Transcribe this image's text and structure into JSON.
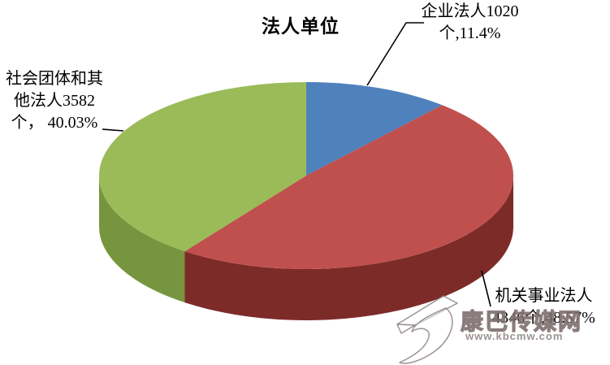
{
  "title": "法人单位",
  "chart_data": {
    "type": "pie",
    "style": "3d",
    "title": "法人单位",
    "rotation": "clockwise",
    "start_angle_deg": 0,
    "legend": "none",
    "slices": [
      {
        "key": "enterprise",
        "name": "企业法人",
        "count": 1020,
        "unit": "个",
        "percent": 11.4,
        "color": "#4f81bd",
        "side_color": "#365f91"
      },
      {
        "key": "government",
        "name": "机关事业法人",
        "count": 4346,
        "unit": "个",
        "percent": 48.57,
        "color": "#c0504d",
        "side_color": "#7d2b29"
      },
      {
        "key": "social",
        "name": "社会团体和其他法人",
        "count": 3582,
        "unit": "个",
        "percent": 40.03,
        "color": "#9bbb59",
        "side_color": "#77953e"
      }
    ]
  },
  "labels": {
    "enterprise": {
      "line1": "企业法人1020",
      "line2": "个,11.4%"
    },
    "social": {
      "line1": "社会团体和其",
      "line2": "他法人3582",
      "line3": "个， 40.03%"
    },
    "government": {
      "line1": "机关事业法人",
      "line2": "4346个,48.57%"
    }
  },
  "watermark": {
    "site_name": "康巴传媒网",
    "url": "www.kbcmw.com"
  }
}
